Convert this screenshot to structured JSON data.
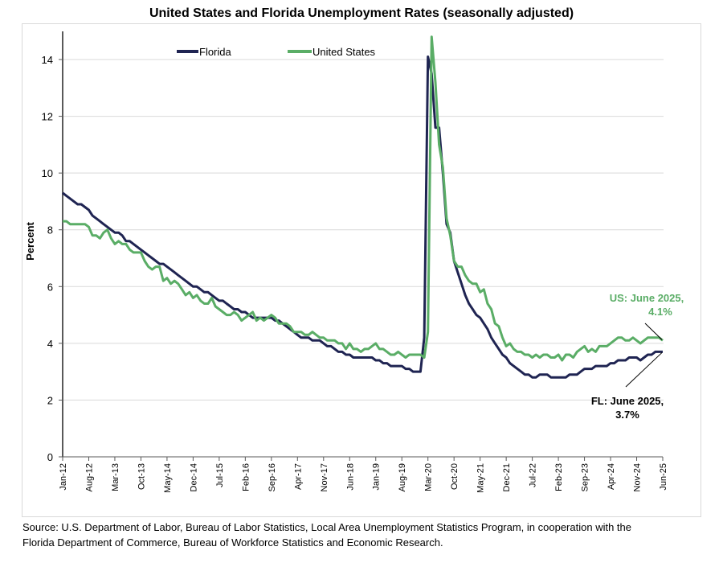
{
  "chart_data": {
    "type": "line",
    "title": "United States and Florida Unemployment Rates (seasonally adjusted)",
    "xlabel": "",
    "ylabel": "Percent",
    "ylim": [
      0,
      15
    ],
    "yticks": [
      0,
      2,
      4,
      6,
      8,
      10,
      12,
      14
    ],
    "grid": true,
    "legend_position": "top-left",
    "x_start": "Jan-12",
    "x_end": "Jun-25",
    "x_frequency": "monthly",
    "xtick_labels": [
      "Jan-12",
      "Aug-12",
      "Mar-13",
      "Oct-13",
      "May-14",
      "Dec-14",
      "Jul-15",
      "Feb-16",
      "Sep-16",
      "Apr-17",
      "Nov-17",
      "Jun-18",
      "Jan-19",
      "Aug-19",
      "Mar-20",
      "Oct-20",
      "May-21",
      "Dec-21",
      "Jul-22",
      "Feb-23",
      "Sep-23",
      "Apr-24",
      "Nov-24",
      "Jun-25"
    ],
    "series": [
      {
        "name": "Florida",
        "color": "#1f2452",
        "values": [
          9.3,
          9.2,
          9.1,
          9.0,
          8.9,
          8.9,
          8.8,
          8.7,
          8.5,
          8.4,
          8.3,
          8.2,
          8.1,
          8.0,
          7.9,
          7.9,
          7.8,
          7.6,
          7.6,
          7.5,
          7.4,
          7.3,
          7.2,
          7.1,
          7.0,
          6.9,
          6.8,
          6.8,
          6.7,
          6.6,
          6.5,
          6.4,
          6.3,
          6.2,
          6.1,
          6.0,
          6.0,
          5.9,
          5.8,
          5.8,
          5.7,
          5.6,
          5.5,
          5.5,
          5.4,
          5.3,
          5.2,
          5.2,
          5.1,
          5.1,
          5.0,
          4.9,
          4.9,
          4.9,
          4.9,
          4.9,
          4.9,
          4.8,
          4.8,
          4.7,
          4.6,
          4.5,
          4.4,
          4.3,
          4.2,
          4.2,
          4.2,
          4.1,
          4.1,
          4.1,
          4.0,
          3.9,
          3.9,
          3.8,
          3.7,
          3.7,
          3.6,
          3.6,
          3.5,
          3.5,
          3.5,
          3.5,
          3.5,
          3.5,
          3.4,
          3.4,
          3.3,
          3.3,
          3.2,
          3.2,
          3.2,
          3.2,
          3.1,
          3.1,
          3.0,
          3.0,
          3.0,
          4.2,
          14.1,
          13.5,
          11.6,
          11.6,
          10.0,
          8.2,
          7.9,
          6.9,
          6.5,
          6.1,
          5.7,
          5.4,
          5.2,
          5.0,
          4.9,
          4.7,
          4.5,
          4.2,
          4.0,
          3.8,
          3.6,
          3.5,
          3.3,
          3.2,
          3.1,
          3.0,
          2.9,
          2.9,
          2.8,
          2.8,
          2.9,
          2.9,
          2.9,
          2.8,
          2.8,
          2.8,
          2.8,
          2.8,
          2.9,
          2.9,
          2.9,
          3.0,
          3.1,
          3.1,
          3.1,
          3.2,
          3.2,
          3.2,
          3.2,
          3.3,
          3.3,
          3.4,
          3.4,
          3.4,
          3.5,
          3.5,
          3.5,
          3.4,
          3.5,
          3.6,
          3.6,
          3.7,
          3.7,
          3.7
        ]
      },
      {
        "name": "United States",
        "color": "#5aad66",
        "values": [
          8.3,
          8.3,
          8.2,
          8.2,
          8.2,
          8.2,
          8.2,
          8.1,
          7.8,
          7.8,
          7.7,
          7.9,
          8.0,
          7.7,
          7.5,
          7.6,
          7.5,
          7.5,
          7.3,
          7.2,
          7.2,
          7.2,
          6.9,
          6.7,
          6.6,
          6.7,
          6.7,
          6.2,
          6.3,
          6.1,
          6.2,
          6.1,
          5.9,
          5.7,
          5.8,
          5.6,
          5.7,
          5.5,
          5.4,
          5.4,
          5.6,
          5.3,
          5.2,
          5.1,
          5.0,
          5.0,
          5.1,
          5.0,
          4.8,
          4.9,
          5.0,
          5.1,
          4.8,
          4.9,
          4.8,
          4.9,
          5.0,
          4.9,
          4.7,
          4.7,
          4.7,
          4.6,
          4.4,
          4.4,
          4.4,
          4.3,
          4.3,
          4.4,
          4.3,
          4.2,
          4.2,
          4.1,
          4.1,
          4.1,
          4.0,
          4.0,
          3.8,
          4.0,
          3.8,
          3.8,
          3.7,
          3.8,
          3.8,
          3.9,
          4.0,
          3.8,
          3.8,
          3.7,
          3.6,
          3.6,
          3.7,
          3.6,
          3.5,
          3.6,
          3.6,
          3.6,
          3.6,
          3.5,
          4.4,
          14.8,
          13.2,
          11.0,
          10.2,
          8.4,
          7.8,
          6.9,
          6.7,
          6.7,
          6.4,
          6.2,
          6.1,
          6.1,
          5.8,
          5.9,
          5.4,
          5.2,
          4.7,
          4.6,
          4.2,
          3.9,
          4.0,
          3.8,
          3.7,
          3.7,
          3.6,
          3.6,
          3.5,
          3.6,
          3.5,
          3.6,
          3.6,
          3.5,
          3.5,
          3.6,
          3.4,
          3.6,
          3.6,
          3.5,
          3.7,
          3.8,
          3.9,
          3.7,
          3.8,
          3.7,
          3.9,
          3.9,
          3.9,
          4.0,
          4.1,
          4.2,
          4.2,
          4.1,
          4.1,
          4.2,
          4.1,
          4.0,
          4.1,
          4.2,
          4.2,
          4.2,
          4.2,
          4.1
        ]
      }
    ],
    "annotations": [
      {
        "series": "United States",
        "text_line1": "US: June 2025,",
        "text_line2": "4.1%"
      },
      {
        "series": "Florida",
        "text_line1": "FL: June 2025,",
        "text_line2": "3.7%"
      }
    ]
  },
  "source": {
    "line1": "Source:  U.S. Department of Labor, Bureau of Labor Statistics, Local Area Unemployment Statistics Program, in cooperation with the",
    "line2": "Florida Department of Commerce, Bureau of Workforce Statistics and Economic Research."
  },
  "colors": {
    "axis": "#595959",
    "grid": "#d9d9d9"
  }
}
